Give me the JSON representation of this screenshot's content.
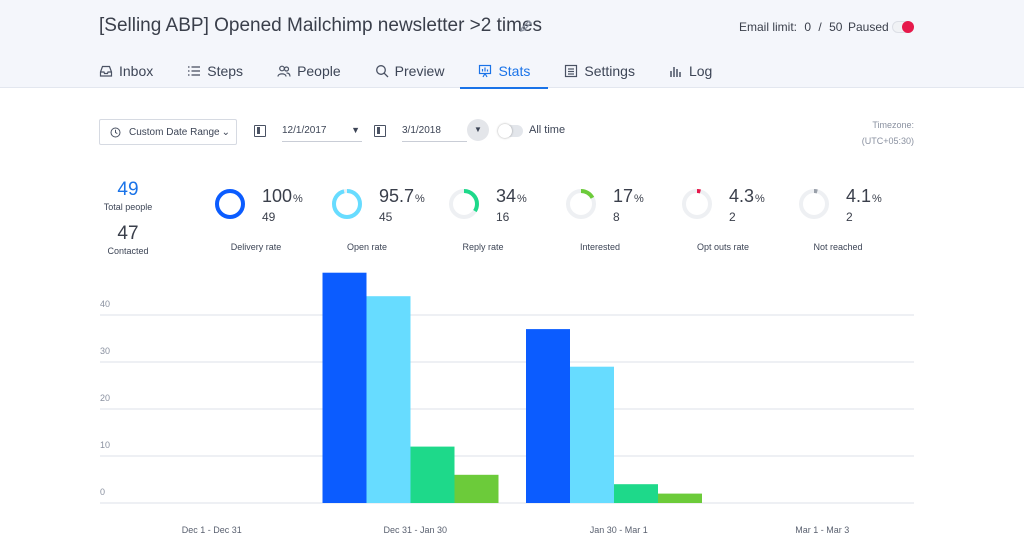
{
  "header": {
    "title": "[Selling ABP] Opened Mailchimp newsletter >2 times",
    "email_limit_label": "Email limit:",
    "email_limit_used": "0",
    "email_limit_sep": "/",
    "email_limit_max": "50",
    "paused_label": "Paused",
    "paused_color": "#e6194b"
  },
  "tabs": [
    {
      "label": "Inbox",
      "icon": "inbox-icon"
    },
    {
      "label": "Steps",
      "icon": "list-icon"
    },
    {
      "label": "People",
      "icon": "people-icon"
    },
    {
      "label": "Preview",
      "icon": "search-icon"
    },
    {
      "label": "Stats",
      "icon": "presentation-chart-icon",
      "active": true
    },
    {
      "label": "Settings",
      "icon": "settings-icon"
    },
    {
      "label": "Log",
      "icon": "bar-chart-icon"
    }
  ],
  "toolbar": {
    "date_range_label": "Custom Date Range",
    "start_date": "12/1/2017",
    "end_date": "3/1/2018",
    "all_time_label": "All time",
    "timezone_label": "Timezone:",
    "timezone_value": "(UTC+05:30)"
  },
  "totals": {
    "total_people": "49",
    "total_people_label": "Total people",
    "contacted": "47",
    "contacted_label": "Contacted"
  },
  "metrics": [
    {
      "pct": "100",
      "unit": "%",
      "count": "49",
      "label": "Delivery rate",
      "fraction": 1.0,
      "color": "#0b5cff"
    },
    {
      "pct": "95.7",
      "unit": "%",
      "count": "45",
      "label": "Open rate",
      "fraction": 0.957,
      "color": "#67dcff"
    },
    {
      "pct": "34",
      "unit": "%",
      "count": "16",
      "label": "Reply rate",
      "fraction": 0.34,
      "color": "#1ed98a"
    },
    {
      "pct": "17",
      "unit": "%",
      "count": "8",
      "label": "Interested",
      "fraction": 0.17,
      "color": "#6ccb3a"
    },
    {
      "pct": "4.3",
      "unit": "%",
      "count": "2",
      "label": "Opt outs rate",
      "fraction": 0.043,
      "color": "#e6194b"
    },
    {
      "pct": "4.1",
      "unit": "%",
      "count": "2",
      "label": "Not reached",
      "fraction": 0.041,
      "color": "#9aa0aa"
    }
  ],
  "chart_data": {
    "type": "bar",
    "categories": [
      "Dec 1 - Dec 31",
      "Dec 31 - Jan 30",
      "Jan 30 - Mar 1",
      "Mar 1 - Mar 3"
    ],
    "yticks": [
      "0",
      "10",
      "20",
      "30",
      "40"
    ],
    "ylim": [
      0,
      50
    ],
    "grid": true,
    "series": [
      {
        "color": "#0b5cff",
        "values": [
          0,
          49,
          37,
          0
        ]
      },
      {
        "color": "#67dcff",
        "values": [
          0,
          44,
          29,
          0
        ]
      },
      {
        "color": "#1ed98a",
        "values": [
          0,
          12,
          4,
          0
        ]
      },
      {
        "color": "#6ccb3a",
        "values": [
          0,
          6,
          2,
          0
        ]
      }
    ]
  }
}
